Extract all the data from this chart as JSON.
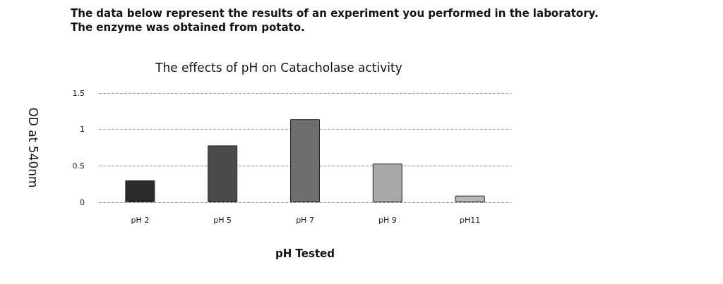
{
  "chart_data": {
    "type": "bar",
    "title": "The effects of pH on Catacholase activity",
    "subtitle": "The data below represent the results of an experiment you performed in the laboratory. The enzyme was obtained from potato.",
    "xlabel": "pH Tested",
    "ylabel": "OD at 540nm",
    "categories": [
      "pH 2",
      "pH 5",
      "pH 7",
      "pH 9",
      "pH11"
    ],
    "values": [
      0.3,
      0.78,
      1.14,
      0.53,
      0.09
    ],
    "colors": [
      "#2b2b2b",
      "#4a4a4a",
      "#6e6e6e",
      "#a8a8a8",
      "#b8b8b8"
    ],
    "ylim": [
      0,
      1.5
    ],
    "yticks": [
      0,
      0.5,
      1,
      1.5
    ],
    "grid": "y"
  }
}
